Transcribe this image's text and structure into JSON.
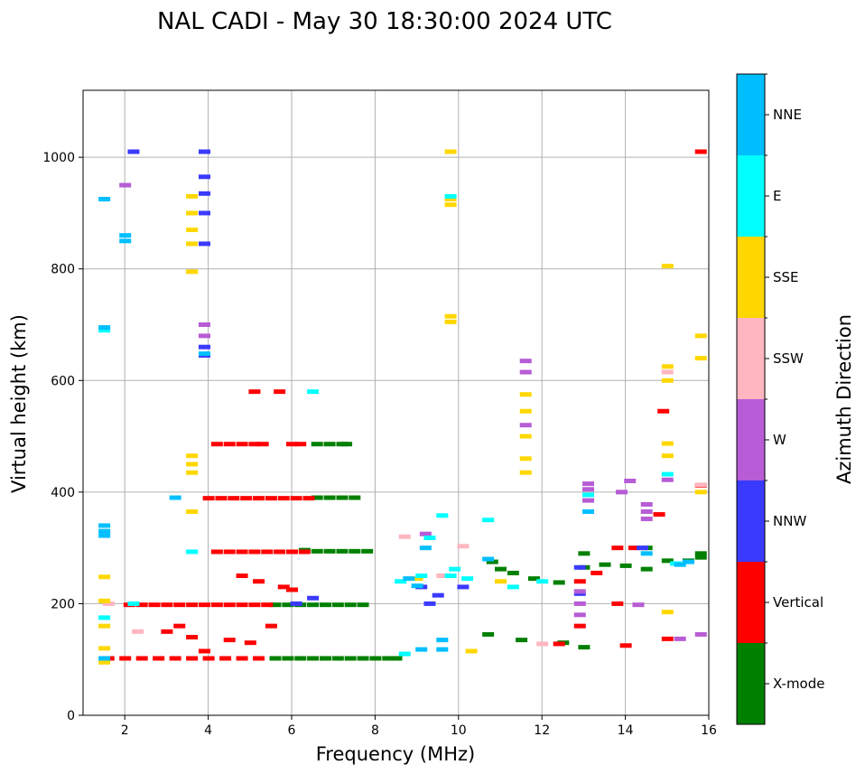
{
  "chart_data": {
    "type": "scatter",
    "title": "NAL CADI - May 30 18:30:00 2024 UTC",
    "xlabel": "Frequency (MHz)",
    "ylabel": "Virtual height (km)",
    "xlim": [
      1,
      16
    ],
    "ylim": [
      0,
      1120
    ],
    "x_ticks": [
      2,
      4,
      6,
      8,
      10,
      12,
      14,
      16
    ],
    "y_ticks": [
      0,
      200,
      400,
      600,
      800,
      1000
    ],
    "grid": true,
    "colorbar": {
      "title": "Azimuth Direction",
      "categories": [
        "X-mode",
        "Vertical",
        "NNW",
        "W",
        "SSW",
        "SSE",
        "E",
        "NNE"
      ],
      "colors": {
        "X-mode": "#008000",
        "Vertical": "#ff0000",
        "NNW": "#3a3aff",
        "W": "#b75cd6",
        "SSW": "#ffb6c1",
        "SSE": "#ffd700",
        "E": "#00ffff",
        "NNE": "#00bfff"
      }
    },
    "series": [
      {
        "name": "X-mode",
        "points": [
          [
            6.6,
            390
          ],
          [
            6.9,
            390
          ],
          [
            7.2,
            390
          ],
          [
            7.5,
            390
          ],
          [
            6.6,
            486
          ],
          [
            6.9,
            486
          ],
          [
            7.2,
            486
          ],
          [
            7.3,
            486
          ],
          [
            6.3,
            296
          ],
          [
            6.6,
            294
          ],
          [
            6.9,
            294
          ],
          [
            7.2,
            294
          ],
          [
            7.5,
            294
          ],
          [
            7.8,
            294
          ],
          [
            5.6,
            198
          ],
          [
            5.9,
            198
          ],
          [
            6.2,
            198
          ],
          [
            6.5,
            198
          ],
          [
            6.8,
            198
          ],
          [
            7.1,
            198
          ],
          [
            7.4,
            198
          ],
          [
            7.7,
            198
          ],
          [
            5.6,
            102
          ],
          [
            5.9,
            102
          ],
          [
            6.2,
            102
          ],
          [
            6.5,
            102
          ],
          [
            6.8,
            102
          ],
          [
            7.1,
            102
          ],
          [
            7.4,
            102
          ],
          [
            7.7,
            102
          ],
          [
            8.0,
            102
          ],
          [
            8.3,
            102
          ],
          [
            8.5,
            102
          ],
          [
            10.8,
            275
          ],
          [
            11.0,
            262
          ],
          [
            11.3,
            255
          ],
          [
            11.8,
            245
          ],
          [
            12.4,
            238
          ],
          [
            13.0,
            290
          ],
          [
            13.0,
            265
          ],
          [
            13.5,
            270
          ],
          [
            14.0,
            268
          ],
          [
            14.5,
            262
          ],
          [
            14.5,
            300
          ],
          [
            15.0,
            277
          ],
          [
            15.5,
            277
          ],
          [
            15.8,
            283
          ],
          [
            15.8,
            290
          ],
          [
            10.7,
            145
          ],
          [
            11.5,
            135
          ],
          [
            12.5,
            130
          ],
          [
            13.0,
            122
          ]
        ]
      },
      {
        "name": "Vertical",
        "points": [
          [
            4.0,
            389
          ],
          [
            4.3,
            389
          ],
          [
            4.6,
            389
          ],
          [
            4.9,
            389
          ],
          [
            5.2,
            389
          ],
          [
            5.5,
            389
          ],
          [
            5.8,
            389
          ],
          [
            6.1,
            389
          ],
          [
            6.4,
            389
          ],
          [
            4.2,
            486
          ],
          [
            4.5,
            486
          ],
          [
            4.8,
            486
          ],
          [
            5.1,
            486
          ],
          [
            5.3,
            486
          ],
          [
            6.0,
            486
          ],
          [
            6.2,
            486
          ],
          [
            5.1,
            580
          ],
          [
            5.7,
            580
          ],
          [
            4.2,
            293
          ],
          [
            4.5,
            293
          ],
          [
            4.8,
            293
          ],
          [
            5.1,
            293
          ],
          [
            5.4,
            293
          ],
          [
            5.7,
            293
          ],
          [
            6.0,
            293
          ],
          [
            6.3,
            293
          ],
          [
            2.1,
            198
          ],
          [
            2.4,
            198
          ],
          [
            2.7,
            198
          ],
          [
            3.0,
            198
          ],
          [
            3.3,
            198
          ],
          [
            3.6,
            198
          ],
          [
            3.9,
            198
          ],
          [
            4.2,
            198
          ],
          [
            4.5,
            198
          ],
          [
            4.8,
            198
          ],
          [
            5.1,
            198
          ],
          [
            5.4,
            198
          ],
          [
            1.6,
            102
          ],
          [
            2.0,
            102
          ],
          [
            2.4,
            102
          ],
          [
            2.8,
            102
          ],
          [
            3.2,
            102
          ],
          [
            3.6,
            102
          ],
          [
            4.0,
            102
          ],
          [
            4.4,
            102
          ],
          [
            4.8,
            102
          ],
          [
            5.2,
            102
          ],
          [
            3.0,
            150
          ],
          [
            3.3,
            160
          ],
          [
            3.6,
            140
          ],
          [
            3.9,
            115
          ],
          [
            4.5,
            135
          ],
          [
            5.0,
            130
          ],
          [
            5.5,
            160
          ],
          [
            4.8,
            250
          ],
          [
            5.2,
            240
          ],
          [
            5.8,
            230
          ],
          [
            6.0,
            225
          ],
          [
            12.9,
            160
          ],
          [
            12.9,
            240
          ],
          [
            12.4,
            128
          ],
          [
            13.3,
            255
          ],
          [
            13.8,
            300
          ],
          [
            14.2,
            300
          ],
          [
            14.8,
            360
          ],
          [
            14.9,
            545
          ],
          [
            15.0,
            137
          ],
          [
            15.8,
            412
          ],
          [
            15.8,
            1010
          ],
          [
            14.0,
            125
          ],
          [
            13.8,
            200
          ]
        ]
      },
      {
        "name": "NNW",
        "points": [
          [
            3.9,
            935
          ],
          [
            3.9,
            900
          ],
          [
            3.9,
            965
          ],
          [
            3.9,
            1010
          ],
          [
            3.9,
            845
          ],
          [
            2.2,
            1010
          ],
          [
            3.9,
            660
          ],
          [
            3.9,
            645
          ],
          [
            12.9,
            265
          ],
          [
            12.9,
            218
          ],
          [
            14.4,
            300
          ],
          [
            9.3,
            200
          ],
          [
            9.1,
            230
          ],
          [
            9.5,
            215
          ],
          [
            10.1,
            230
          ],
          [
            6.1,
            200
          ],
          [
            6.5,
            210
          ]
        ]
      },
      {
        "name": "W",
        "points": [
          [
            3.9,
            700
          ],
          [
            3.9,
            680
          ],
          [
            11.6,
            635
          ],
          [
            11.6,
            615
          ],
          [
            11.6,
            520
          ],
          [
            12.9,
            200
          ],
          [
            12.9,
            180
          ],
          [
            12.9,
            222
          ],
          [
            13.1,
            415
          ],
          [
            13.1,
            405
          ],
          [
            13.1,
            385
          ],
          [
            13.9,
            400
          ],
          [
            14.1,
            420
          ],
          [
            14.5,
            378
          ],
          [
            14.5,
            365
          ],
          [
            14.5,
            352
          ],
          [
            15.0,
            422
          ],
          [
            15.3,
            137
          ],
          [
            15.8,
            145
          ],
          [
            14.3,
            198
          ],
          [
            9.2,
            325
          ],
          [
            2.0,
            950
          ]
        ]
      },
      {
        "name": "SSW",
        "points": [
          [
            15.0,
            615
          ],
          [
            15.8,
            413
          ],
          [
            8.7,
            320
          ],
          [
            10.1,
            303
          ],
          [
            12.0,
            128
          ],
          [
            9.6,
            250
          ],
          [
            1.6,
            200
          ],
          [
            2.3,
            150
          ]
        ]
      },
      {
        "name": "SSE",
        "points": [
          [
            9.8,
            1010
          ],
          [
            9.8,
            925
          ],
          [
            9.8,
            915
          ],
          [
            9.8,
            715
          ],
          [
            9.8,
            705
          ],
          [
            11.6,
            575
          ],
          [
            11.6,
            545
          ],
          [
            11.6,
            500
          ],
          [
            11.6,
            460
          ],
          [
            11.6,
            435
          ],
          [
            15.0,
            805
          ],
          [
            15.0,
            625
          ],
          [
            15.0,
            600
          ],
          [
            15.0,
            487
          ],
          [
            15.0,
            465
          ],
          [
            15.8,
            680
          ],
          [
            15.8,
            640
          ],
          [
            15.8,
            400
          ],
          [
            3.6,
            930
          ],
          [
            3.6,
            900
          ],
          [
            3.6,
            870
          ],
          [
            3.6,
            845
          ],
          [
            3.6,
            795
          ],
          [
            3.6,
            465
          ],
          [
            3.6,
            450
          ],
          [
            3.6,
            435
          ],
          [
            3.6,
            365
          ],
          [
            1.5,
            248
          ],
          [
            1.5,
            205
          ],
          [
            1.5,
            160
          ],
          [
            1.5,
            120
          ],
          [
            1.5,
            95
          ],
          [
            15.0,
            185
          ],
          [
            10.3,
            115
          ],
          [
            9.0,
            245
          ],
          [
            11.0,
            240
          ]
        ]
      },
      {
        "name": "E",
        "points": [
          [
            1.5,
            690
          ],
          [
            6.5,
            580
          ],
          [
            9.8,
            930
          ],
          [
            8.6,
            240
          ],
          [
            9.1,
            250
          ],
          [
            9.3,
            318
          ],
          [
            9.9,
            262
          ],
          [
            10.7,
            350
          ],
          [
            11.3,
            230
          ],
          [
            12.0,
            240
          ],
          [
            15.0,
            432
          ],
          [
            15.2,
            272
          ],
          [
            13.1,
            395
          ],
          [
            1.5,
            175
          ],
          [
            2.2,
            200
          ],
          [
            3.6,
            293
          ],
          [
            8.7,
            110
          ],
          [
            9.8,
            250
          ],
          [
            10.2,
            245
          ],
          [
            9.6,
            358
          ]
        ]
      },
      {
        "name": "NNE",
        "points": [
          [
            1.5,
            925
          ],
          [
            1.5,
            340
          ],
          [
            1.5,
            330
          ],
          [
            1.5,
            322
          ],
          [
            2.0,
            860
          ],
          [
            2.0,
            850
          ],
          [
            1.5,
            695
          ],
          [
            3.9,
            648
          ],
          [
            13.1,
            365
          ],
          [
            8.8,
            245
          ],
          [
            9.0,
            232
          ],
          [
            9.2,
            300
          ],
          [
            9.6,
            135
          ],
          [
            9.6,
            118
          ],
          [
            9.1,
            118
          ],
          [
            10.7,
            280
          ],
          [
            14.5,
            290
          ],
          [
            15.3,
            270
          ],
          [
            15.5,
            275
          ],
          [
            1.5,
            102
          ],
          [
            3.2,
            390
          ]
        ]
      }
    ]
  }
}
